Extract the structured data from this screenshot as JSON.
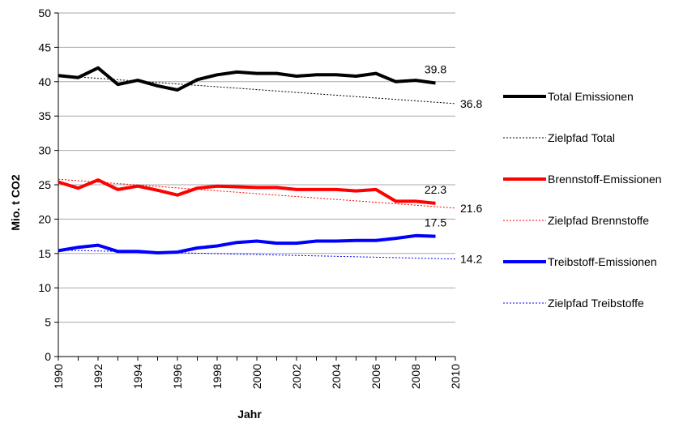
{
  "chart_data": {
    "type": "line",
    "xlabel": "Jahr",
    "ylabel": "Mio. t CO2",
    "xlim": [
      1990,
      2010
    ],
    "ylim": [
      0,
      50
    ],
    "x_ticks": [
      "1990",
      "1992",
      "1994",
      "1996",
      "1998",
      "2000",
      "2002",
      "2004",
      "2006",
      "2008",
      "2010"
    ],
    "y_ticks": [
      "0",
      "5",
      "10",
      "15",
      "20",
      "25",
      "30",
      "35",
      "40",
      "45",
      "50"
    ],
    "grid": "horizontal",
    "legend_position": "right",
    "series": [
      {
        "name": "Total Emissionen",
        "style": "solid",
        "color": "#000000",
        "x": [
          1990,
          1991,
          1992,
          1993,
          1994,
          1995,
          1996,
          1997,
          1998,
          1999,
          2000,
          2001,
          2002,
          2003,
          2004,
          2005,
          2006,
          2007,
          2008,
          2009
        ],
        "values": [
          40.9,
          40.6,
          42.0,
          39.6,
          40.2,
          39.4,
          38.8,
          40.3,
          41.0,
          41.4,
          41.2,
          41.2,
          40.8,
          41.0,
          41.0,
          40.8,
          41.2,
          40.0,
          40.2,
          39.8
        ]
      },
      {
        "name": "Zielpfad Total",
        "style": "dotted",
        "color": "#000000",
        "x": [
          1990,
          2010
        ],
        "values": [
          40.9,
          36.8
        ]
      },
      {
        "name": "Brennstoff-Emissionen",
        "style": "solid",
        "color": "#ff0000",
        "x": [
          1990,
          1991,
          1992,
          1993,
          1994,
          1995,
          1996,
          1997,
          1998,
          1999,
          2000,
          2001,
          2002,
          2003,
          2004,
          2005,
          2006,
          2007,
          2008,
          2009
        ],
        "values": [
          25.4,
          24.5,
          25.7,
          24.3,
          24.8,
          24.2,
          23.5,
          24.5,
          24.8,
          24.7,
          24.6,
          24.6,
          24.3,
          24.3,
          24.3,
          24.1,
          24.3,
          22.6,
          22.6,
          22.3
        ]
      },
      {
        "name": "Zielpfad Brennstoffe",
        "style": "dotted",
        "color": "#ff0000",
        "x": [
          1990,
          2010
        ],
        "values": [
          25.8,
          21.6
        ]
      },
      {
        "name": "Treibstoff-Emissionen",
        "style": "solid",
        "color": "#0000ff",
        "x": [
          1990,
          1991,
          1992,
          1993,
          1994,
          1995,
          1996,
          1997,
          1998,
          1999,
          2000,
          2001,
          2002,
          2003,
          2004,
          2005,
          2006,
          2007,
          2008,
          2009
        ],
        "values": [
          15.4,
          15.9,
          16.2,
          15.3,
          15.3,
          15.1,
          15.2,
          15.8,
          16.1,
          16.6,
          16.8,
          16.5,
          16.5,
          16.8,
          16.8,
          16.9,
          16.9,
          17.2,
          17.6,
          17.5
        ]
      },
      {
        "name": "Zielpfad Treibstoffe",
        "style": "dotted",
        "color": "#0000ff",
        "x": [
          1990,
          2010
        ],
        "values": [
          15.5,
          14.2
        ]
      }
    ],
    "annotations": [
      {
        "text": "39.8",
        "x": 2009,
        "y": 39.8,
        "anchor": "above"
      },
      {
        "text": "36.8",
        "x": 2010,
        "y": 36.8,
        "anchor": "right"
      },
      {
        "text": "22.3",
        "x": 2009,
        "y": 22.3,
        "anchor": "above"
      },
      {
        "text": "21.6",
        "x": 2010,
        "y": 21.6,
        "anchor": "right"
      },
      {
        "text": "17.5",
        "x": 2009,
        "y": 17.5,
        "anchor": "above"
      },
      {
        "text": "14.2",
        "x": 2010,
        "y": 14.2,
        "anchor": "right"
      }
    ]
  }
}
